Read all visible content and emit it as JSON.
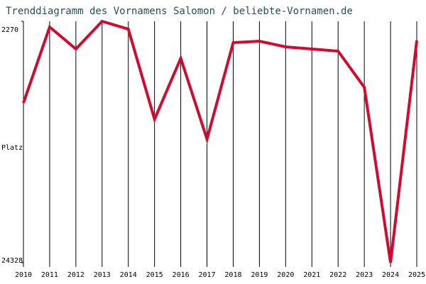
{
  "chart_data": {
    "type": "line",
    "title": "Trenddiagramm des Vornamens Salomon / beliebte-Vornamen.de",
    "y_label": "Platz",
    "categories": [
      "2010",
      "2011",
      "2012",
      "2013",
      "2014",
      "2015",
      "2016",
      "2017",
      "2018",
      "2019",
      "2020",
      "2021",
      "2022",
      "2023",
      "2024",
      "2025"
    ],
    "series": [
      {
        "name": "Salomon",
        "color": "#d20a2e",
        "values": [
          9731,
          2789,
          4800,
          2270,
          2984,
          11223,
          5644,
          13040,
          4216,
          4087,
          4606,
          4800,
          4995,
          8304,
          24328,
          4022
        ]
      }
    ],
    "ylim": [
      24328,
      2270
    ],
    "yticks": [
      2270,
      24328
    ],
    "grid": true
  }
}
